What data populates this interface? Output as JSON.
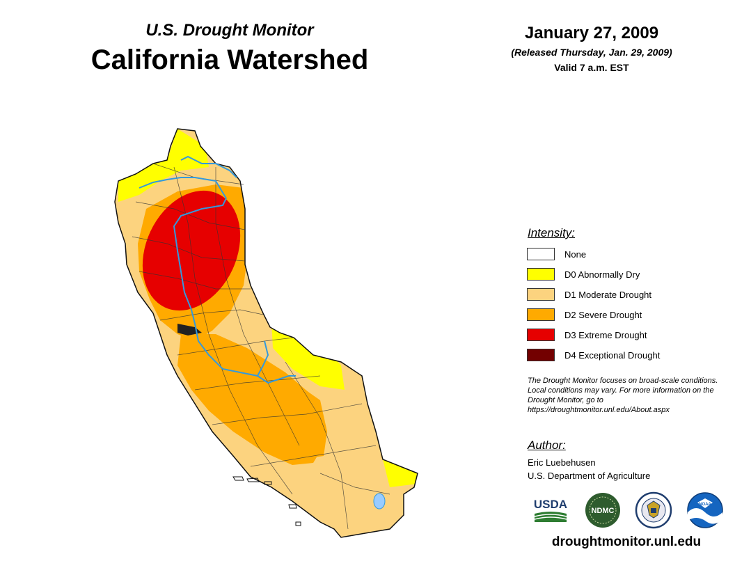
{
  "header": {
    "subtitle": "U.S. Drought Monitor",
    "title": "California Watershed",
    "date": "January 27, 2009",
    "released": "(Released Thursday, Jan. 29, 2009)",
    "valid": "Valid 7 a.m. EST"
  },
  "legend": {
    "title": "Intensity:",
    "items": [
      {
        "label": "None",
        "color": "#ffffff"
      },
      {
        "label": "D0 Abnormally Dry",
        "color": "#ffff00"
      },
      {
        "label": "D1 Moderate Drought",
        "color": "#fcd37f"
      },
      {
        "label": "D2 Severe Drought",
        "color": "#ffaa00"
      },
      {
        "label": "D3 Extreme Drought",
        "color": "#e60000"
      },
      {
        "label": "D4 Exceptional Drought",
        "color": "#730000"
      }
    ]
  },
  "note": "The Drought Monitor focuses on broad-scale conditions. Local conditions may vary. For more information on the Drought Monitor, go to https://droughtmonitor.unl.edu/About.aspx",
  "author": {
    "title": "Author:",
    "name": "Eric Luebehusen",
    "org": "U.S. Department of Agriculture"
  },
  "logos": {
    "usda": "USDA",
    "ndmc": "NDMC",
    "noaa": "NOAA"
  },
  "website": "droughtmonitor.unl.edu",
  "colors": {
    "river": "#3399dd",
    "boundary": "#333333"
  }
}
